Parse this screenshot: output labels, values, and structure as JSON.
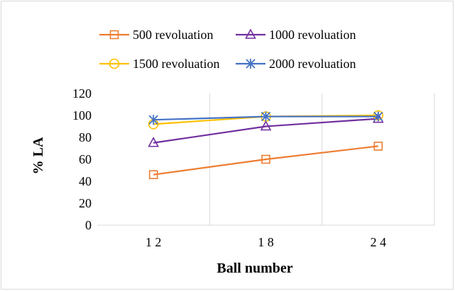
{
  "chart_data": {
    "type": "line",
    "title": "",
    "xlabel": "Ball number",
    "ylabel": "% LA",
    "categories": [
      "1 2",
      "1 8",
      "2 4"
    ],
    "ylim": [
      0,
      120
    ],
    "yticks": [
      0,
      20,
      40,
      60,
      80,
      100,
      120
    ],
    "grid": "vertical",
    "legend_position": "top",
    "series": [
      {
        "name": "500 revoluation",
        "values": [
          46,
          60,
          72
        ],
        "color": "#ED7D31",
        "marker": "square"
      },
      {
        "name": "1000 revoluation",
        "values": [
          75,
          90,
          97
        ],
        "color": "#7030A0",
        "marker": "triangle"
      },
      {
        "name": "1500 revoluation",
        "values": [
          92,
          99,
          100
        ],
        "color": "#FFC000",
        "marker": "circle"
      },
      {
        "name": "2000 revoluation",
        "values": [
          96,
          99,
          99
        ],
        "color": "#4472C4",
        "marker": "star"
      }
    ]
  }
}
